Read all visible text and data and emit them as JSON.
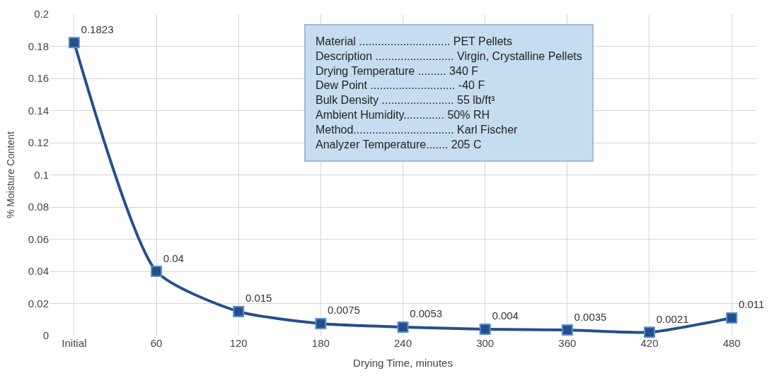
{
  "chart_data": {
    "type": "line",
    "xlabel": "Drying Time, minutes",
    "ylabel": "% Moisture Content",
    "categories": [
      "Initial",
      "60",
      "120",
      "180",
      "240",
      "300",
      "360",
      "420",
      "480"
    ],
    "series": [
      {
        "color": "#24508a",
        "values": [
          0.1823,
          0.04,
          0.015,
          0.0075,
          0.0053,
          0.004,
          0.0035,
          0.0021,
          0.011
        ],
        "value_labels": [
          "0.1823",
          "0.04",
          "0.015",
          "0.0075",
          "0.0053",
          "0.004",
          "0.0035",
          "0.0021",
          "0.011"
        ]
      }
    ],
    "ylim": [
      0,
      0.2
    ],
    "yticks": [
      {
        "value": 0,
        "label": "0"
      },
      0.02,
      0.04,
      0.06,
      0.08,
      0.1,
      0.12,
      0.14,
      0.16,
      0.18,
      0.2
    ],
    "grid": true,
    "marker": "square",
    "line_style": "solid",
    "annotations": [
      "Material ............................. PET Pellets",
      "Description ......................... Virgin, Crystalline Pellets",
      "Drying Temperature ......... 340 F",
      "Dew Point ........................... -40 F",
      "Bulk Density ....................... 55 lb/ft³",
      "Ambient Humidity............. 50% RH",
      "Method................................ Karl Fischer",
      "Analyzer Temperature....... 205 C"
    ]
  }
}
